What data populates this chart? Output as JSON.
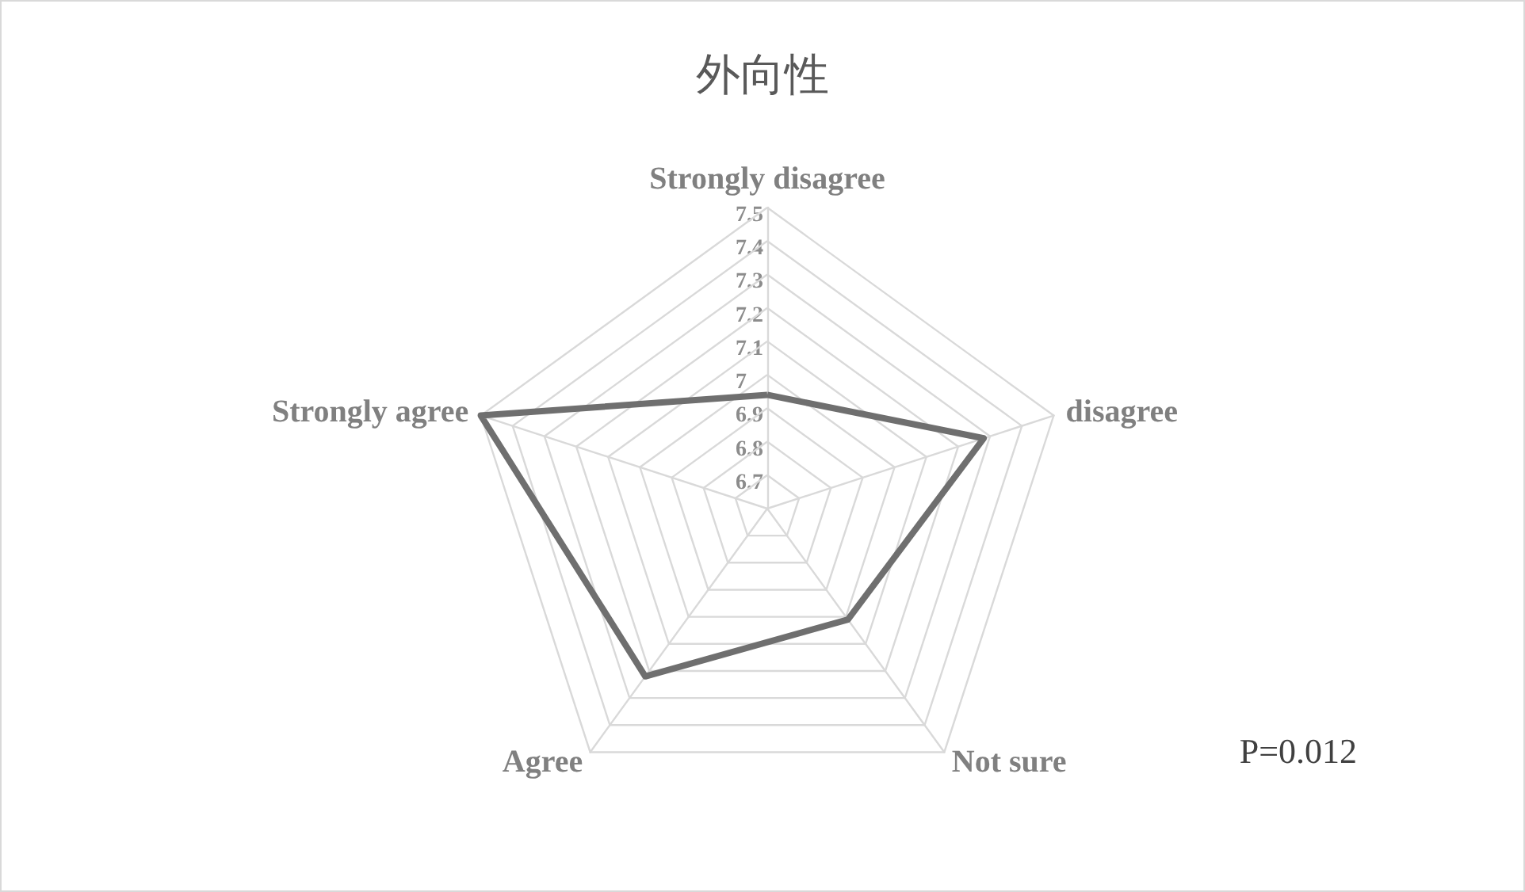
{
  "chart_data": {
    "type": "radar",
    "title": "外向性",
    "categories": [
      "Strongly disagree",
      "disagree",
      "Not sure",
      "Agree",
      "Strongly agree"
    ],
    "series": [
      {
        "color": "#6f6f6f",
        "values": [
          6.94,
          7.28,
          7.01,
          7.22,
          7.5
        ]
      }
    ],
    "ylim": [
      6.6,
      7.5
    ],
    "yticks": [
      6.7,
      6.8,
      6.9,
      7,
      7.1,
      7.2,
      7.3,
      7.4,
      7.5
    ],
    "grid": true,
    "marker": "none",
    "line_style": "solid",
    "annotations": [
      "P=0.012"
    ]
  }
}
